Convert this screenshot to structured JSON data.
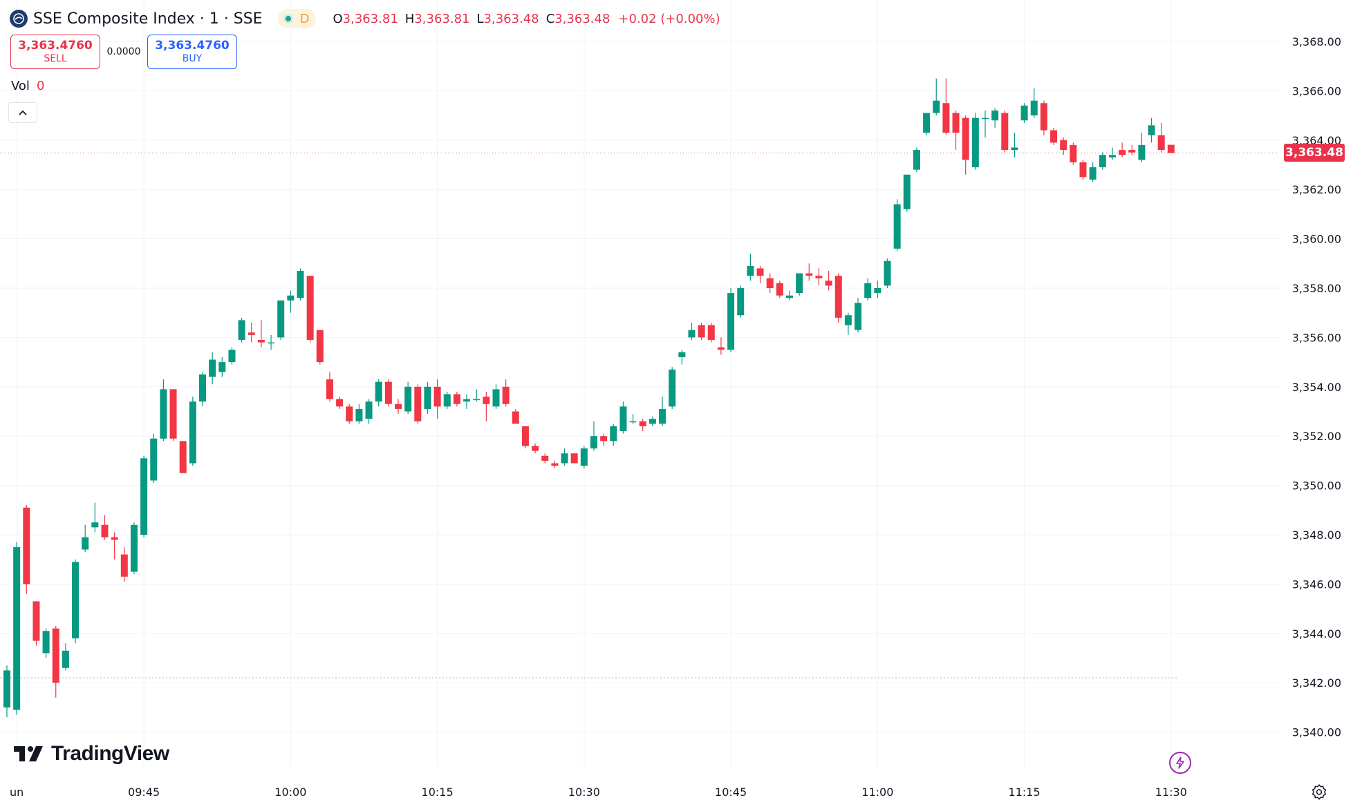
{
  "header": {
    "symbol_title": "SSE Composite Index · 1 · SSE",
    "market_status": "D",
    "ohlc": {
      "o_label": "O",
      "o_value": "3,363.81",
      "h_label": "H",
      "h_value": "3,363.81",
      "l_label": "L",
      "l_value": "3,363.48",
      "c_label": "C",
      "c_value": "3,363.48",
      "change": "+0.02 (+0.00%)"
    }
  },
  "trade": {
    "sell_price": "3,363.4760",
    "sell_label": "SELL",
    "spread": "0.0000",
    "buy_price": "3,363.4760",
    "buy_label": "BUY"
  },
  "volume": {
    "label": "Vol",
    "value": "0"
  },
  "branding": {
    "logo_text": "TradingView"
  },
  "last_price_tag": "3,363.48",
  "colors": {
    "up": "#089981",
    "down": "#f23645",
    "grid": "#f0f3fa",
    "axis_text": "#131722"
  },
  "chart_data": {
    "type": "candlestick",
    "interval_minutes": 1,
    "y_axis_ticks": [
      "3,368.00",
      "3,366.00",
      "3,364.00",
      "3,362.00",
      "3,360.00",
      "3,358.00",
      "3,356.00",
      "3,354.00",
      "3,352.00",
      "3,350.00",
      "3,348.00",
      "3,346.00",
      "3,344.00",
      "3,342.00",
      "3,340.00"
    ],
    "ylim": [
      3339.0,
      3368.5
    ],
    "x_axis_ticks": [
      {
        "label": "un",
        "time": "09:32"
      },
      {
        "label": "09:45",
        "time": "09:45"
      },
      {
        "label": "10:00",
        "time": "10:00"
      },
      {
        "label": "10:15",
        "time": "10:15"
      },
      {
        "label": "10:30",
        "time": "10:30"
      },
      {
        "label": "10:45",
        "time": "10:45"
      },
      {
        "label": "11:00",
        "time": "11:00"
      },
      {
        "label": "11:15",
        "time": "11:15"
      },
      {
        "label": "11:30",
        "time": "11:30"
      }
    ],
    "grid": true,
    "last_price": 3363.48,
    "reference_price": 3342.2,
    "candles": [
      {
        "t": "09:31",
        "o": 3341.0,
        "h": 3342.7,
        "l": 3340.6,
        "c": 3342.5
      },
      {
        "t": "09:32",
        "o": 3340.9,
        "h": 3347.7,
        "l": 3340.7,
        "c": 3347.5
      },
      {
        "t": "09:33",
        "o": 3349.1,
        "h": 3349.2,
        "l": 3345.6,
        "c": 3346.0
      },
      {
        "t": "09:34",
        "o": 3345.3,
        "h": 3345.3,
        "l": 3343.5,
        "c": 3343.7
      },
      {
        "t": "09:35",
        "o": 3343.2,
        "h": 3344.2,
        "l": 3343.0,
        "c": 3344.1
      },
      {
        "t": "09:36",
        "o": 3344.2,
        "h": 3344.3,
        "l": 3341.4,
        "c": 3342.0
      },
      {
        "t": "09:37",
        "o": 3342.6,
        "h": 3343.6,
        "l": 3342.5,
        "c": 3343.3
      },
      {
        "t": "09:38",
        "o": 3343.8,
        "h": 3347.0,
        "l": 3343.6,
        "c": 3346.9
      },
      {
        "t": "09:39",
        "o": 3347.4,
        "h": 3348.4,
        "l": 3347.3,
        "c": 3347.9
      },
      {
        "t": "09:40",
        "o": 3348.3,
        "h": 3349.3,
        "l": 3348.1,
        "c": 3348.5
      },
      {
        "t": "09:41",
        "o": 3348.4,
        "h": 3348.8,
        "l": 3347.8,
        "c": 3347.9
      },
      {
        "t": "09:42",
        "o": 3347.9,
        "h": 3348.1,
        "l": 3347.0,
        "c": 3347.8
      },
      {
        "t": "09:43",
        "o": 3347.2,
        "h": 3347.5,
        "l": 3346.1,
        "c": 3346.3
      },
      {
        "t": "09:44",
        "o": 3346.5,
        "h": 3348.5,
        "l": 3346.4,
        "c": 3348.4
      },
      {
        "t": "09:45",
        "o": 3348.0,
        "h": 3351.2,
        "l": 3347.9,
        "c": 3351.1
      },
      {
        "t": "09:46",
        "o": 3350.2,
        "h": 3352.1,
        "l": 3350.1,
        "c": 3351.9
      },
      {
        "t": "09:47",
        "o": 3351.9,
        "h": 3354.3,
        "l": 3351.8,
        "c": 3353.9
      },
      {
        "t": "09:48",
        "o": 3353.9,
        "h": 3353.9,
        "l": 3351.8,
        "c": 3351.9
      },
      {
        "t": "09:49",
        "o": 3351.8,
        "h": 3351.8,
        "l": 3350.5,
        "c": 3350.5
      },
      {
        "t": "09:50",
        "o": 3350.9,
        "h": 3353.6,
        "l": 3350.8,
        "c": 3353.4
      },
      {
        "t": "09:51",
        "o": 3353.4,
        "h": 3354.6,
        "l": 3353.2,
        "c": 3354.5
      },
      {
        "t": "09:52",
        "o": 3354.4,
        "h": 3355.4,
        "l": 3354.1,
        "c": 3355.1
      },
      {
        "t": "09:53",
        "o": 3354.6,
        "h": 3355.2,
        "l": 3354.4,
        "c": 3355.0
      },
      {
        "t": "09:54",
        "o": 3355.0,
        "h": 3355.6,
        "l": 3354.9,
        "c": 3355.5
      },
      {
        "t": "09:55",
        "o": 3355.9,
        "h": 3356.8,
        "l": 3355.8,
        "c": 3356.7
      },
      {
        "t": "09:56",
        "o": 3356.2,
        "h": 3356.6,
        "l": 3355.8,
        "c": 3356.1
      },
      {
        "t": "09:57",
        "o": 3355.9,
        "h": 3356.7,
        "l": 3355.6,
        "c": 3355.8
      },
      {
        "t": "09:58",
        "o": 3355.8,
        "h": 3356.1,
        "l": 3355.5,
        "c": 3355.8
      },
      {
        "t": "09:59",
        "o": 3356.0,
        "h": 3357.5,
        "l": 3355.9,
        "c": 3357.5
      },
      {
        "t": "10:00",
        "o": 3357.5,
        "h": 3357.9,
        "l": 3357.0,
        "c": 3357.7
      },
      {
        "t": "10:01",
        "o": 3357.6,
        "h": 3358.8,
        "l": 3357.5,
        "c": 3358.7
      },
      {
        "t": "10:02",
        "o": 3358.5,
        "h": 3358.5,
        "l": 3355.8,
        "c": 3355.9
      },
      {
        "t": "10:03",
        "o": 3356.3,
        "h": 3356.3,
        "l": 3354.9,
        "c": 3355.0
      },
      {
        "t": "10:04",
        "o": 3354.3,
        "h": 3354.6,
        "l": 3353.4,
        "c": 3353.5
      },
      {
        "t": "10:05",
        "o": 3353.5,
        "h": 3353.6,
        "l": 3353.1,
        "c": 3353.2
      },
      {
        "t": "10:06",
        "o": 3353.2,
        "h": 3353.3,
        "l": 3352.5,
        "c": 3352.6
      },
      {
        "t": "10:07",
        "o": 3352.6,
        "h": 3353.3,
        "l": 3352.5,
        "c": 3353.1
      },
      {
        "t": "10:08",
        "o": 3352.7,
        "h": 3353.5,
        "l": 3352.5,
        "c": 3353.4
      },
      {
        "t": "10:09",
        "o": 3353.4,
        "h": 3354.3,
        "l": 3353.2,
        "c": 3354.2
      },
      {
        "t": "10:10",
        "o": 3354.2,
        "h": 3354.3,
        "l": 3353.2,
        "c": 3353.3
      },
      {
        "t": "10:11",
        "o": 3353.3,
        "h": 3353.5,
        "l": 3352.9,
        "c": 3353.1
      },
      {
        "t": "10:12",
        "o": 3353.0,
        "h": 3354.2,
        "l": 3352.9,
        "c": 3354.0
      },
      {
        "t": "10:13",
        "o": 3354.0,
        "h": 3354.1,
        "l": 3352.5,
        "c": 3352.6
      },
      {
        "t": "10:14",
        "o": 3353.1,
        "h": 3354.2,
        "l": 3352.9,
        "c": 3354.0
      },
      {
        "t": "10:15",
        "o": 3354.0,
        "h": 3354.3,
        "l": 3352.7,
        "c": 3353.2
      },
      {
        "t": "10:16",
        "o": 3353.2,
        "h": 3353.8,
        "l": 3353.1,
        "c": 3353.7
      },
      {
        "t": "10:17",
        "o": 3353.7,
        "h": 3353.8,
        "l": 3353.2,
        "c": 3353.3
      },
      {
        "t": "10:18",
        "o": 3353.4,
        "h": 3353.7,
        "l": 3353.1,
        "c": 3353.5
      },
      {
        "t": "10:19",
        "o": 3353.5,
        "h": 3353.9,
        "l": 3353.4,
        "c": 3353.5
      },
      {
        "t": "10:20",
        "o": 3353.6,
        "h": 3353.8,
        "l": 3352.6,
        "c": 3353.3
      },
      {
        "t": "10:21",
        "o": 3353.2,
        "h": 3354.1,
        "l": 3353.1,
        "c": 3353.9
      },
      {
        "t": "10:22",
        "o": 3354.0,
        "h": 3354.3,
        "l": 3353.2,
        "c": 3353.3
      },
      {
        "t": "10:23",
        "o": 3353.0,
        "h": 3353.1,
        "l": 3352.5,
        "c": 3352.5
      },
      {
        "t": "10:24",
        "o": 3352.4,
        "h": 3352.4,
        "l": 3351.5,
        "c": 3351.6
      },
      {
        "t": "10:25",
        "o": 3351.6,
        "h": 3351.7,
        "l": 3351.3,
        "c": 3351.4
      },
      {
        "t": "10:26",
        "o": 3351.2,
        "h": 3351.3,
        "l": 3350.9,
        "c": 3351.0
      },
      {
        "t": "10:27",
        "o": 3350.9,
        "h": 3351.0,
        "l": 3350.7,
        "c": 3350.8
      },
      {
        "t": "10:28",
        "o": 3350.9,
        "h": 3351.5,
        "l": 3350.8,
        "c": 3351.3
      },
      {
        "t": "10:29",
        "o": 3351.3,
        "h": 3351.3,
        "l": 3350.9,
        "c": 3350.9
      },
      {
        "t": "10:30",
        "o": 3350.8,
        "h": 3351.6,
        "l": 3350.7,
        "c": 3351.5
      },
      {
        "t": "10:31",
        "o": 3351.5,
        "h": 3352.6,
        "l": 3351.4,
        "c": 3352.0
      },
      {
        "t": "10:32",
        "o": 3352.0,
        "h": 3352.1,
        "l": 3351.6,
        "c": 3351.8
      },
      {
        "t": "10:33",
        "o": 3351.8,
        "h": 3352.5,
        "l": 3351.6,
        "c": 3352.4
      },
      {
        "t": "10:34",
        "o": 3352.2,
        "h": 3353.4,
        "l": 3352.1,
        "c": 3353.2
      },
      {
        "t": "10:35",
        "o": 3352.6,
        "h": 3352.9,
        "l": 3352.5,
        "c": 3352.6
      },
      {
        "t": "10:36",
        "o": 3352.6,
        "h": 3352.7,
        "l": 3352.2,
        "c": 3352.4
      },
      {
        "t": "10:37",
        "o": 3352.5,
        "h": 3352.8,
        "l": 3352.4,
        "c": 3352.7
      },
      {
        "t": "10:38",
        "o": 3352.5,
        "h": 3353.6,
        "l": 3352.4,
        "c": 3353.1
      },
      {
        "t": "10:39",
        "o": 3353.2,
        "h": 3354.8,
        "l": 3353.1,
        "c": 3354.7
      },
      {
        "t": "10:40",
        "o": 3355.2,
        "h": 3355.5,
        "l": 3354.9,
        "c": 3355.4
      },
      {
        "t": "10:41",
        "o": 3356.0,
        "h": 3356.6,
        "l": 3355.9,
        "c": 3356.3
      },
      {
        "t": "10:42",
        "o": 3356.5,
        "h": 3356.6,
        "l": 3355.9,
        "c": 3356.0
      },
      {
        "t": "10:43",
        "o": 3356.5,
        "h": 3356.6,
        "l": 3355.8,
        "c": 3355.9
      },
      {
        "t": "10:44",
        "o": 3355.6,
        "h": 3356.0,
        "l": 3355.3,
        "c": 3355.5
      },
      {
        "t": "10:45",
        "o": 3355.5,
        "h": 3358.0,
        "l": 3355.4,
        "c": 3357.8
      },
      {
        "t": "10:46",
        "o": 3356.9,
        "h": 3358.1,
        "l": 3356.8,
        "c": 3358.0
      },
      {
        "t": "10:47",
        "o": 3358.5,
        "h": 3359.4,
        "l": 3358.3,
        "c": 3358.9
      },
      {
        "t": "10:48",
        "o": 3358.8,
        "h": 3358.9,
        "l": 3358.2,
        "c": 3358.5
      },
      {
        "t": "10:49",
        "o": 3358.4,
        "h": 3358.6,
        "l": 3357.8,
        "c": 3358.0
      },
      {
        "t": "10:50",
        "o": 3358.2,
        "h": 3358.3,
        "l": 3357.6,
        "c": 3357.7
      },
      {
        "t": "10:51",
        "o": 3357.6,
        "h": 3357.9,
        "l": 3357.5,
        "c": 3357.7
      },
      {
        "t": "10:52",
        "o": 3357.8,
        "h": 3358.6,
        "l": 3357.7,
        "c": 3358.6
      },
      {
        "t": "10:53",
        "o": 3358.6,
        "h": 3359.0,
        "l": 3358.3,
        "c": 3358.5
      },
      {
        "t": "10:54",
        "o": 3358.5,
        "h": 3358.8,
        "l": 3358.1,
        "c": 3358.4
      },
      {
        "t": "10:55",
        "o": 3358.3,
        "h": 3358.7,
        "l": 3357.9,
        "c": 3358.1
      },
      {
        "t": "10:56",
        "o": 3358.5,
        "h": 3358.6,
        "l": 3356.6,
        "c": 3356.8
      },
      {
        "t": "10:57",
        "o": 3356.5,
        "h": 3357.0,
        "l": 3356.1,
        "c": 3356.9
      },
      {
        "t": "10:58",
        "o": 3356.3,
        "h": 3357.6,
        "l": 3356.2,
        "c": 3357.4
      },
      {
        "t": "10:59",
        "o": 3357.6,
        "h": 3358.4,
        "l": 3357.5,
        "c": 3358.2
      },
      {
        "t": "11:00",
        "o": 3357.8,
        "h": 3358.3,
        "l": 3357.6,
        "c": 3358.0
      },
      {
        "t": "11:01",
        "o": 3358.1,
        "h": 3359.2,
        "l": 3358.0,
        "c": 3359.1
      },
      {
        "t": "11:02",
        "o": 3359.6,
        "h": 3361.6,
        "l": 3359.5,
        "c": 3361.4
      },
      {
        "t": "11:03",
        "o": 3361.2,
        "h": 3362.6,
        "l": 3361.1,
        "c": 3362.6
      },
      {
        "t": "11:04",
        "o": 3362.8,
        "h": 3363.7,
        "l": 3362.7,
        "c": 3363.6
      },
      {
        "t": "11:05",
        "o": 3364.3,
        "h": 3365.1,
        "l": 3364.2,
        "c": 3365.1
      },
      {
        "t": "11:06",
        "o": 3365.1,
        "h": 3366.5,
        "l": 3365.0,
        "c": 3365.6
      },
      {
        "t": "11:07",
        "o": 3365.5,
        "h": 3366.5,
        "l": 3364.2,
        "c": 3364.3
      },
      {
        "t": "11:08",
        "o": 3365.1,
        "h": 3365.2,
        "l": 3363.6,
        "c": 3364.3
      },
      {
        "t": "11:09",
        "o": 3364.9,
        "h": 3365.0,
        "l": 3362.6,
        "c": 3363.2
      },
      {
        "t": "11:10",
        "o": 3362.9,
        "h": 3365.1,
        "l": 3362.8,
        "c": 3364.9
      },
      {
        "t": "11:11",
        "o": 3364.9,
        "h": 3365.2,
        "l": 3364.1,
        "c": 3364.9
      },
      {
        "t": "11:12",
        "o": 3364.8,
        "h": 3365.3,
        "l": 3364.5,
        "c": 3365.2
      },
      {
        "t": "11:13",
        "o": 3365.1,
        "h": 3365.2,
        "l": 3363.5,
        "c": 3363.6
      },
      {
        "t": "11:14",
        "o": 3363.6,
        "h": 3364.3,
        "l": 3363.3,
        "c": 3363.7
      },
      {
        "t": "11:15",
        "o": 3364.8,
        "h": 3365.5,
        "l": 3364.7,
        "c": 3365.4
      },
      {
        "t": "11:16",
        "o": 3365.0,
        "h": 3366.1,
        "l": 3364.9,
        "c": 3365.6
      },
      {
        "t": "11:17",
        "o": 3365.5,
        "h": 3365.6,
        "l": 3364.2,
        "c": 3364.4
      },
      {
        "t": "11:18",
        "o": 3364.4,
        "h": 3364.5,
        "l": 3363.8,
        "c": 3363.9
      },
      {
        "t": "11:19",
        "o": 3364.0,
        "h": 3364.1,
        "l": 3363.4,
        "c": 3363.6
      },
      {
        "t": "11:20",
        "o": 3363.8,
        "h": 3363.9,
        "l": 3363.0,
        "c": 3363.1
      },
      {
        "t": "11:21",
        "o": 3363.1,
        "h": 3363.2,
        "l": 3362.4,
        "c": 3362.5
      },
      {
        "t": "11:22",
        "o": 3362.4,
        "h": 3363.1,
        "l": 3362.3,
        "c": 3362.9
      },
      {
        "t": "11:23",
        "o": 3362.9,
        "h": 3363.5,
        "l": 3362.8,
        "c": 3363.4
      },
      {
        "t": "11:24",
        "o": 3363.3,
        "h": 3363.7,
        "l": 3363.2,
        "c": 3363.4
      },
      {
        "t": "11:25",
        "o": 3363.6,
        "h": 3363.9,
        "l": 3363.3,
        "c": 3363.4
      },
      {
        "t": "11:26",
        "o": 3363.6,
        "h": 3363.8,
        "l": 3363.4,
        "c": 3363.5
      },
      {
        "t": "11:27",
        "o": 3363.2,
        "h": 3364.3,
        "l": 3363.1,
        "c": 3363.8
      },
      {
        "t": "11:28",
        "o": 3364.2,
        "h": 3364.9,
        "l": 3363.9,
        "c": 3364.6
      },
      {
        "t": "11:29",
        "o": 3364.2,
        "h": 3364.7,
        "l": 3363.5,
        "c": 3363.6
      },
      {
        "t": "11:30",
        "o": 3363.81,
        "h": 3363.81,
        "l": 3363.48,
        "c": 3363.48
      }
    ]
  }
}
